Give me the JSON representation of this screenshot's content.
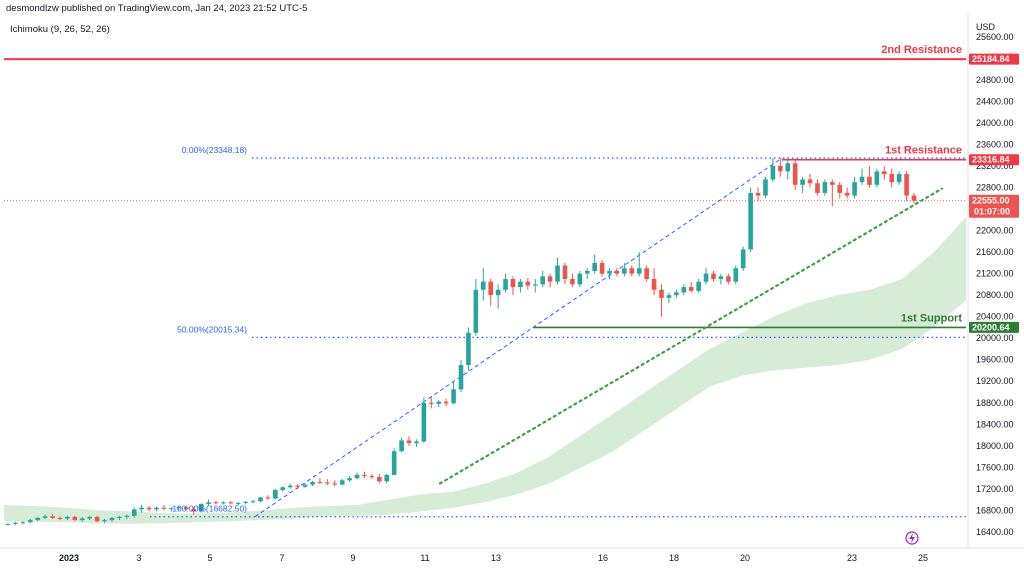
{
  "header": {
    "published_by": "desmondlzw published on TradingView.com, Jan 24, 2023 21:52 UTC-5",
    "indicator": "Ichimoku (9, 26, 52, 26)",
    "currency": "USD"
  },
  "colors": {
    "up": "#26a69a",
    "down": "#ef5350",
    "resistance": "#f23645",
    "support": "#2e7d32",
    "fib": "#2962ff",
    "cloud": "#c8e6c9",
    "trend": "#43a047"
  },
  "chart_data": {
    "type": "candlestick",
    "symbol_currency": "USD",
    "x_tick_labels": [
      "2023",
      "3",
      "5",
      "7",
      "9",
      "11",
      "13",
      "16",
      "18",
      "20",
      "23",
      "25"
    ],
    "y_ticks": [
      16400,
      16800,
      17200,
      17600,
      18000,
      18400,
      18800,
      19200,
      19600,
      20000,
      20400,
      20800,
      21200,
      21600,
      22000,
      22400,
      22800,
      23200,
      23600,
      24000,
      24400,
      24800,
      25200,
      25600
    ],
    "y_tick_labels": [
      "16400.00",
      "16800.00",
      "17200.00",
      "17600.00",
      "18000.00",
      "18400.00",
      "18800.00",
      "19200.00",
      "19600.00",
      "20000.00",
      "20400.00",
      "20800.00",
      "21200.00",
      "21600.00",
      "22000.00",
      "22400.00",
      "22800.00",
      "23200.00",
      "23600.00",
      "24000.00",
      "24400.00",
      "24800.00",
      "25200.00",
      "25600.00"
    ],
    "ylim": [
      16250,
      25950
    ],
    "levels": [
      {
        "name": "2nd Resistance",
        "label": "2nd Resistance",
        "value": 25184.84,
        "tag": "25184.84",
        "color": "#f23645"
      },
      {
        "name": "1st Resistance",
        "label": "1st Resistance",
        "value": 23316.84,
        "tag": "23316.84",
        "color": "#f23645"
      },
      {
        "name": "1st Support",
        "label": "1st Support",
        "value": 20200.64,
        "tag": "20200.64",
        "color": "#2e7d32"
      }
    ],
    "current_price": {
      "value": 22555.0,
      "tag": "22555.00",
      "countdown": "01:07:00"
    },
    "fibonacci": [
      {
        "label": "0.00%(23348.18)",
        "value": 23348.18
      },
      {
        "label": "50.00%(20015.34)",
        "value": 20015.34
      },
      {
        "label": "100.00%(16682.50)",
        "value": 16682.5
      }
    ],
    "candles": [
      [
        16540,
        16560,
        16520,
        16550
      ],
      [
        16550,
        16590,
        16530,
        16570
      ],
      [
        16570,
        16600,
        16540,
        16580
      ],
      [
        16580,
        16640,
        16560,
        16620
      ],
      [
        16620,
        16680,
        16600,
        16660
      ],
      [
        16660,
        16720,
        16640,
        16690
      ],
      [
        16690,
        16730,
        16640,
        16660
      ],
      [
        16660,
        16690,
        16620,
        16650
      ],
      [
        16650,
        16700,
        16620,
        16680
      ],
      [
        16680,
        16700,
        16600,
        16620
      ],
      [
        16620,
        16680,
        16590,
        16650
      ],
      [
        16650,
        16700,
        16620,
        16680
      ],
      [
        16680,
        16700,
        16580,
        16600
      ],
      [
        16600,
        16640,
        16560,
        16620
      ],
      [
        16620,
        16680,
        16590,
        16660
      ],
      [
        16660,
        16700,
        16620,
        16680
      ],
      [
        16680,
        16720,
        16640,
        16700
      ],
      [
        16700,
        16850,
        16670,
        16820
      ],
      [
        16820,
        16900,
        16760,
        16850
      ],
      [
        16850,
        16880,
        16780,
        16820
      ],
      [
        16820,
        16870,
        16780,
        16850
      ],
      [
        16850,
        16900,
        16800,
        16830
      ],
      [
        16830,
        16860,
        16780,
        16840
      ],
      [
        16840,
        16880,
        16800,
        16860
      ],
      [
        16860,
        16880,
        16800,
        16820
      ],
      [
        16820,
        16860,
        16720,
        16780
      ],
      [
        16780,
        16930,
        16760,
        16920
      ],
      [
        16920,
        17000,
        16880,
        16950
      ],
      [
        16950,
        16980,
        16920,
        16940
      ],
      [
        16940,
        16970,
        16910,
        16950
      ],
      [
        16950,
        16980,
        16910,
        16930
      ],
      [
        16930,
        16960,
        16900,
        16940
      ],
      [
        16940,
        16970,
        16910,
        16960
      ],
      [
        16960,
        17000,
        16930,
        16970
      ],
      [
        16970,
        17050,
        16950,
        17040
      ],
      [
        17040,
        17080,
        17000,
        17020
      ],
      [
        17020,
        17200,
        17000,
        17180
      ],
      [
        17180,
        17250,
        17150,
        17230
      ],
      [
        17230,
        17300,
        17200,
        17260
      ],
      [
        17260,
        17290,
        17200,
        17240
      ],
      [
        17240,
        17300,
        17220,
        17280
      ],
      [
        17280,
        17350,
        17250,
        17330
      ],
      [
        17330,
        17400,
        17300,
        17320
      ],
      [
        17320,
        17380,
        17270,
        17300
      ],
      [
        17300,
        17360,
        17250,
        17280
      ],
      [
        17280,
        17380,
        17260,
        17360
      ],
      [
        17360,
        17440,
        17330,
        17400
      ],
      [
        17400,
        17500,
        17380,
        17460
      ],
      [
        17460,
        17520,
        17400,
        17440
      ],
      [
        17440,
        17480,
        17380,
        17420
      ],
      [
        17420,
        17480,
        17300,
        17340
      ],
      [
        17340,
        17480,
        17300,
        17460
      ],
      [
        17460,
        17950,
        17450,
        17900
      ],
      [
        17900,
        18150,
        17880,
        18100
      ],
      [
        18100,
        18180,
        18000,
        18050
      ],
      [
        18050,
        18120,
        17980,
        18080
      ],
      [
        18080,
        18900,
        18060,
        18800
      ],
      [
        18800,
        18900,
        18700,
        18780
      ],
      [
        18780,
        18850,
        18720,
        18820
      ],
      [
        18820,
        18880,
        18740,
        18790
      ],
      [
        18790,
        19200,
        18770,
        19050
      ],
      [
        19050,
        19600,
        19000,
        19500
      ],
      [
        19500,
        20200,
        19400,
        20100
      ],
      [
        20100,
        21100,
        20050,
        20900
      ],
      [
        20900,
        21300,
        20700,
        21050
      ],
      [
        21050,
        21100,
        20600,
        20800
      ],
      [
        20800,
        21000,
        20550,
        20900
      ],
      [
        20900,
        21200,
        20850,
        21100
      ],
      [
        21100,
        21150,
        20800,
        20950
      ],
      [
        20950,
        21100,
        20850,
        21050
      ],
      [
        21050,
        21120,
        20900,
        20980
      ],
      [
        20980,
        21100,
        20850,
        21000
      ],
      [
        21000,
        21250,
        20950,
        21150
      ],
      [
        21150,
        21200,
        20950,
        21050
      ],
      [
        21050,
        21500,
        21000,
        21350
      ],
      [
        21350,
        21400,
        21000,
        21100
      ],
      [
        21100,
        21200,
        20950,
        21000
      ],
      [
        21000,
        21250,
        20950,
        21200
      ],
      [
        21200,
        21300,
        21100,
        21250
      ],
      [
        21250,
        21550,
        21200,
        21400
      ],
      [
        21400,
        21450,
        21150,
        21200
      ],
      [
        21200,
        21300,
        21100,
        21250
      ],
      [
        21250,
        21300,
        21150,
        21200
      ],
      [
        21200,
        21400,
        21150,
        21300
      ],
      [
        21300,
        21350,
        21150,
        21200
      ],
      [
        21200,
        21600,
        21150,
        21300
      ],
      [
        21300,
        21350,
        21050,
        21100
      ],
      [
        21100,
        21300,
        20800,
        20900
      ],
      [
        20900,
        21000,
        20400,
        20750
      ],
      [
        20750,
        20850,
        20650,
        20800
      ],
      [
        20800,
        20900,
        20750,
        20850
      ],
      [
        20850,
        21000,
        20800,
        20950
      ],
      [
        20950,
        21050,
        20850,
        20880
      ],
      [
        20880,
        21100,
        20850,
        21050
      ],
      [
        21050,
        21300,
        21000,
        21200
      ],
      [
        21200,
        21250,
        21050,
        21100
      ],
      [
        21100,
        21200,
        21000,
        21150
      ],
      [
        21150,
        21200,
        21000,
        21050
      ],
      [
        21050,
        21350,
        21000,
        21300
      ],
      [
        21300,
        21700,
        21250,
        21650
      ],
      [
        21650,
        22800,
        21600,
        22700
      ],
      [
        22700,
        22800,
        22550,
        22650
      ],
      [
        22650,
        23000,
        22600,
        22950
      ],
      [
        22950,
        23350,
        22900,
        23200
      ],
      [
        23200,
        23350,
        23000,
        23100
      ],
      [
        23100,
        23340,
        22950,
        23250
      ],
      [
        23250,
        23300,
        22750,
        22850
      ],
      [
        22850,
        23000,
        22700,
        22950
      ],
      [
        22950,
        23050,
        22800,
        22880
      ],
      [
        22880,
        22950,
        22650,
        22700
      ],
      [
        22700,
        22950,
        22650,
        22900
      ],
      [
        22900,
        22950,
        22450,
        22850
      ],
      [
        22850,
        22900,
        22600,
        22700
      ],
      [
        22700,
        22800,
        22600,
        22650
      ],
      [
        22650,
        23000,
        22600,
        22900
      ],
      [
        22900,
        23150,
        22850,
        23000
      ],
      [
        23000,
        23200,
        22800,
        22850
      ],
      [
        22850,
        23150,
        22800,
        23100
      ],
      [
        23100,
        23200,
        22950,
        23050
      ],
      [
        23050,
        23150,
        22800,
        22900
      ],
      [
        22900,
        23100,
        22850,
        23050
      ],
      [
        23050,
        23100,
        22550,
        22650
      ],
      [
        22650,
        22700,
        22500,
        22555
      ]
    ],
    "ichimoku_cloud_upper": [
      16900,
      16880,
      16850,
      16800,
      16780,
      16750,
      16740,
      16760,
      16800,
      16850,
      16880,
      16900,
      17000,
      17100,
      17150,
      17300,
      17500,
      17800,
      18200,
      18600,
      19000,
      19400,
      19800,
      20100,
      20400,
      20650,
      20800,
      20900,
      21100,
      21600,
      22250
    ],
    "ichimoku_cloud_lower": [
      16600,
      16590,
      16580,
      16560,
      16550,
      16560,
      16580,
      16600,
      16620,
      16650,
      16680,
      16700,
      16720,
      16780,
      16850,
      16950,
      17100,
      17300,
      17600,
      17900,
      18300,
      18700,
      19100,
      19300,
      19400,
      19450,
      19500,
      19600,
      19800,
      20200,
      20700
    ]
  }
}
